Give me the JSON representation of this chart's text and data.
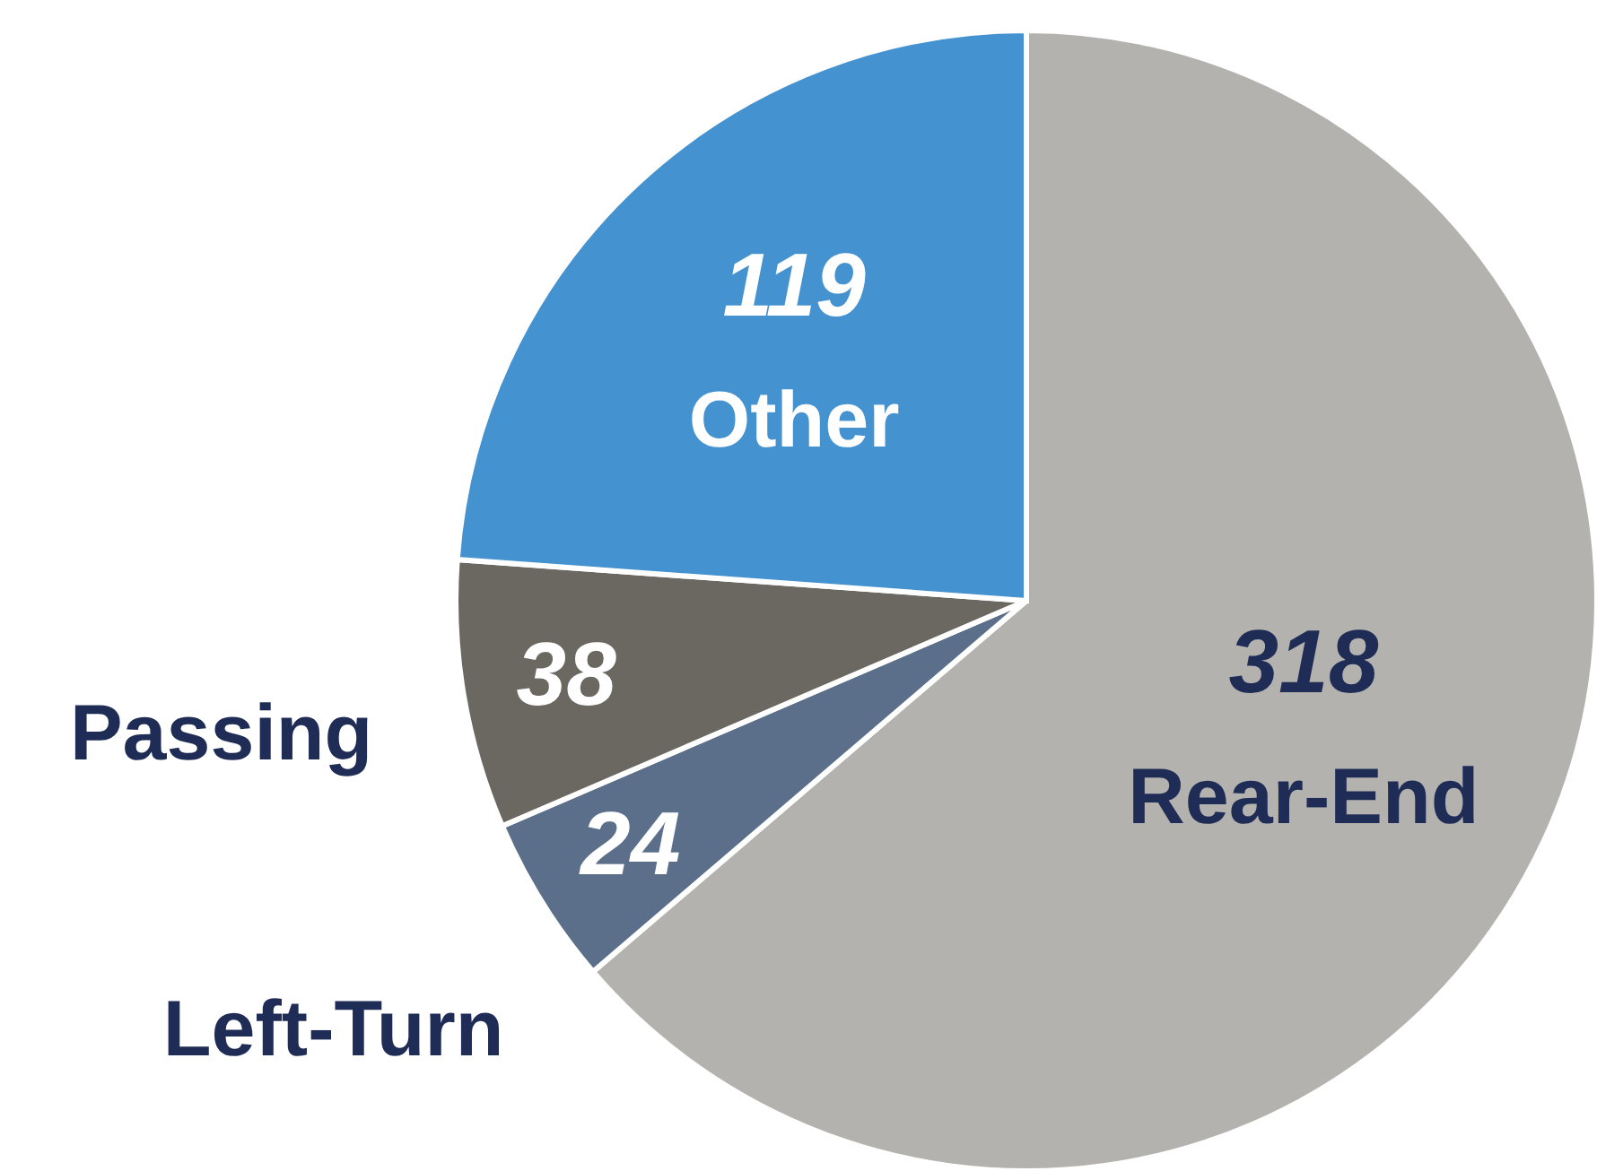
{
  "chart_data": {
    "type": "pie",
    "categories": [
      "Rear-End",
      "Left-Turn",
      "Passing",
      "Other"
    ],
    "values": [
      318,
      24,
      38,
      119
    ],
    "colors": [
      "#b3b2ae",
      "#5b6f8a",
      "#6b6862",
      "#4492cf"
    ],
    "data_labels": true
  }
}
